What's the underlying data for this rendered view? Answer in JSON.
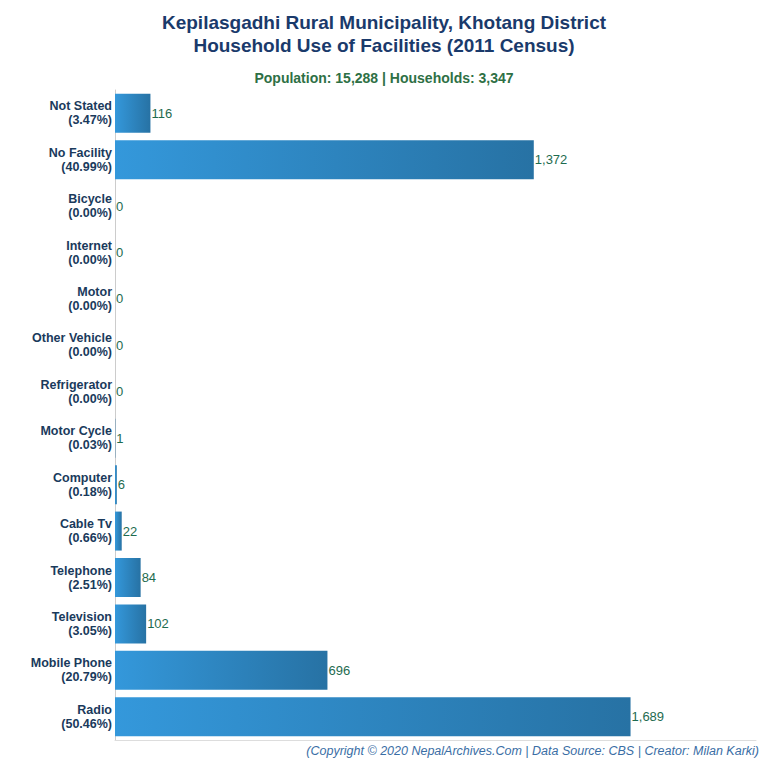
{
  "chart_data": {
    "type": "bar",
    "orientation": "horizontal",
    "title": "Kepilasgadhi Rural Municipality, Khotang District\nHousehold Use of Facilities (2011 Census)",
    "subtitle": "Population: 15,288 | Households: 3,347",
    "annotation": "(Copyright © 2020 NepalArchives.Com | Data Source: CBS | Creator: Milan Karki)",
    "categories": [
      "Not Stated\n(3.47%)",
      "No Facility\n(40.99%)",
      "Bicycle\n(0.00%)",
      "Internet\n(0.00%)",
      "Motor\n(0.00%)",
      "Other Vehicle\n(0.00%)",
      "Refrigerator\n(0.00%)",
      "Motor Cycle\n(0.03%)",
      "Computer\n(0.18%)",
      "Cable Tv\n(0.66%)",
      "Telephone\n(2.51%)",
      "Television\n(3.05%)",
      "Mobile Phone\n(20.79%)",
      "Radio\n(50.46%)"
    ],
    "values": [
      116,
      1372,
      0,
      0,
      0,
      0,
      0,
      1,
      6,
      22,
      84,
      102,
      696,
      1689
    ],
    "value_labels": [
      "116",
      "1,372",
      "0",
      "0",
      "0",
      "0",
      "0",
      "1",
      "6",
      "22",
      "84",
      "102",
      "696",
      "1,689"
    ],
    "color": "#3498db",
    "xlim": [
      0,
      2100
    ],
    "grid": false,
    "data_labels": true,
    "tick_labels": "y"
  }
}
